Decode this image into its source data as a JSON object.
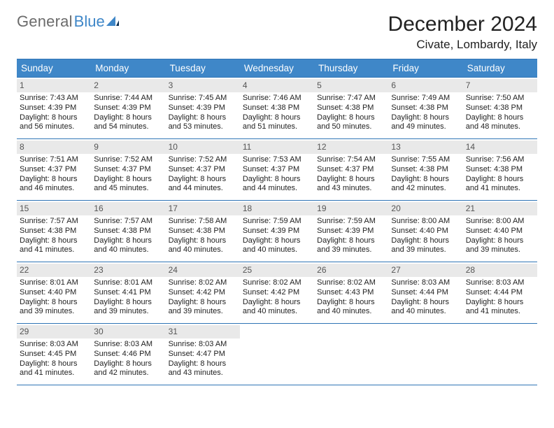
{
  "brand": {
    "general": "General",
    "blue": "Blue"
  },
  "header": {
    "title": "December 2024",
    "location": "Civate, Lombardy, Italy"
  },
  "colors": {
    "brand_blue": "#3f87c8",
    "header_bg": "#3f87c8",
    "divider": "#2f74b5",
    "daynum_bg": "#e9e9e9",
    "text": "#222222",
    "bg": "#ffffff"
  },
  "day_headers": [
    "Sunday",
    "Monday",
    "Tuesday",
    "Wednesday",
    "Thursday",
    "Friday",
    "Saturday"
  ],
  "weeks": [
    [
      {
        "n": "1",
        "sr": "Sunrise: 7:43 AM",
        "ss": "Sunset: 4:39 PM",
        "d1": "Daylight: 8 hours",
        "d2": "and 56 minutes."
      },
      {
        "n": "2",
        "sr": "Sunrise: 7:44 AM",
        "ss": "Sunset: 4:39 PM",
        "d1": "Daylight: 8 hours",
        "d2": "and 54 minutes."
      },
      {
        "n": "3",
        "sr": "Sunrise: 7:45 AM",
        "ss": "Sunset: 4:39 PM",
        "d1": "Daylight: 8 hours",
        "d2": "and 53 minutes."
      },
      {
        "n": "4",
        "sr": "Sunrise: 7:46 AM",
        "ss": "Sunset: 4:38 PM",
        "d1": "Daylight: 8 hours",
        "d2": "and 51 minutes."
      },
      {
        "n": "5",
        "sr": "Sunrise: 7:47 AM",
        "ss": "Sunset: 4:38 PM",
        "d1": "Daylight: 8 hours",
        "d2": "and 50 minutes."
      },
      {
        "n": "6",
        "sr": "Sunrise: 7:49 AM",
        "ss": "Sunset: 4:38 PM",
        "d1": "Daylight: 8 hours",
        "d2": "and 49 minutes."
      },
      {
        "n": "7",
        "sr": "Sunrise: 7:50 AM",
        "ss": "Sunset: 4:38 PM",
        "d1": "Daylight: 8 hours",
        "d2": "and 48 minutes."
      }
    ],
    [
      {
        "n": "8",
        "sr": "Sunrise: 7:51 AM",
        "ss": "Sunset: 4:37 PM",
        "d1": "Daylight: 8 hours",
        "d2": "and 46 minutes."
      },
      {
        "n": "9",
        "sr": "Sunrise: 7:52 AM",
        "ss": "Sunset: 4:37 PM",
        "d1": "Daylight: 8 hours",
        "d2": "and 45 minutes."
      },
      {
        "n": "10",
        "sr": "Sunrise: 7:52 AM",
        "ss": "Sunset: 4:37 PM",
        "d1": "Daylight: 8 hours",
        "d2": "and 44 minutes."
      },
      {
        "n": "11",
        "sr": "Sunrise: 7:53 AM",
        "ss": "Sunset: 4:37 PM",
        "d1": "Daylight: 8 hours",
        "d2": "and 44 minutes."
      },
      {
        "n": "12",
        "sr": "Sunrise: 7:54 AM",
        "ss": "Sunset: 4:37 PM",
        "d1": "Daylight: 8 hours",
        "d2": "and 43 minutes."
      },
      {
        "n": "13",
        "sr": "Sunrise: 7:55 AM",
        "ss": "Sunset: 4:38 PM",
        "d1": "Daylight: 8 hours",
        "d2": "and 42 minutes."
      },
      {
        "n": "14",
        "sr": "Sunrise: 7:56 AM",
        "ss": "Sunset: 4:38 PM",
        "d1": "Daylight: 8 hours",
        "d2": "and 41 minutes."
      }
    ],
    [
      {
        "n": "15",
        "sr": "Sunrise: 7:57 AM",
        "ss": "Sunset: 4:38 PM",
        "d1": "Daylight: 8 hours",
        "d2": "and 41 minutes."
      },
      {
        "n": "16",
        "sr": "Sunrise: 7:57 AM",
        "ss": "Sunset: 4:38 PM",
        "d1": "Daylight: 8 hours",
        "d2": "and 40 minutes."
      },
      {
        "n": "17",
        "sr": "Sunrise: 7:58 AM",
        "ss": "Sunset: 4:38 PM",
        "d1": "Daylight: 8 hours",
        "d2": "and 40 minutes."
      },
      {
        "n": "18",
        "sr": "Sunrise: 7:59 AM",
        "ss": "Sunset: 4:39 PM",
        "d1": "Daylight: 8 hours",
        "d2": "and 40 minutes."
      },
      {
        "n": "19",
        "sr": "Sunrise: 7:59 AM",
        "ss": "Sunset: 4:39 PM",
        "d1": "Daylight: 8 hours",
        "d2": "and 39 minutes."
      },
      {
        "n": "20",
        "sr": "Sunrise: 8:00 AM",
        "ss": "Sunset: 4:40 PM",
        "d1": "Daylight: 8 hours",
        "d2": "and 39 minutes."
      },
      {
        "n": "21",
        "sr": "Sunrise: 8:00 AM",
        "ss": "Sunset: 4:40 PM",
        "d1": "Daylight: 8 hours",
        "d2": "and 39 minutes."
      }
    ],
    [
      {
        "n": "22",
        "sr": "Sunrise: 8:01 AM",
        "ss": "Sunset: 4:40 PM",
        "d1": "Daylight: 8 hours",
        "d2": "and 39 minutes."
      },
      {
        "n": "23",
        "sr": "Sunrise: 8:01 AM",
        "ss": "Sunset: 4:41 PM",
        "d1": "Daylight: 8 hours",
        "d2": "and 39 minutes."
      },
      {
        "n": "24",
        "sr": "Sunrise: 8:02 AM",
        "ss": "Sunset: 4:42 PM",
        "d1": "Daylight: 8 hours",
        "d2": "and 39 minutes."
      },
      {
        "n": "25",
        "sr": "Sunrise: 8:02 AM",
        "ss": "Sunset: 4:42 PM",
        "d1": "Daylight: 8 hours",
        "d2": "and 40 minutes."
      },
      {
        "n": "26",
        "sr": "Sunrise: 8:02 AM",
        "ss": "Sunset: 4:43 PM",
        "d1": "Daylight: 8 hours",
        "d2": "and 40 minutes."
      },
      {
        "n": "27",
        "sr": "Sunrise: 8:03 AM",
        "ss": "Sunset: 4:44 PM",
        "d1": "Daylight: 8 hours",
        "d2": "and 40 minutes."
      },
      {
        "n": "28",
        "sr": "Sunrise: 8:03 AM",
        "ss": "Sunset: 4:44 PM",
        "d1": "Daylight: 8 hours",
        "d2": "and 41 minutes."
      }
    ],
    [
      {
        "n": "29",
        "sr": "Sunrise: 8:03 AM",
        "ss": "Sunset: 4:45 PM",
        "d1": "Daylight: 8 hours",
        "d2": "and 41 minutes."
      },
      {
        "n": "30",
        "sr": "Sunrise: 8:03 AM",
        "ss": "Sunset: 4:46 PM",
        "d1": "Daylight: 8 hours",
        "d2": "and 42 minutes."
      },
      {
        "n": "31",
        "sr": "Sunrise: 8:03 AM",
        "ss": "Sunset: 4:47 PM",
        "d1": "Daylight: 8 hours",
        "d2": "and 43 minutes."
      },
      {
        "empty": true
      },
      {
        "empty": true
      },
      {
        "empty": true
      },
      {
        "empty": true
      }
    ]
  ]
}
